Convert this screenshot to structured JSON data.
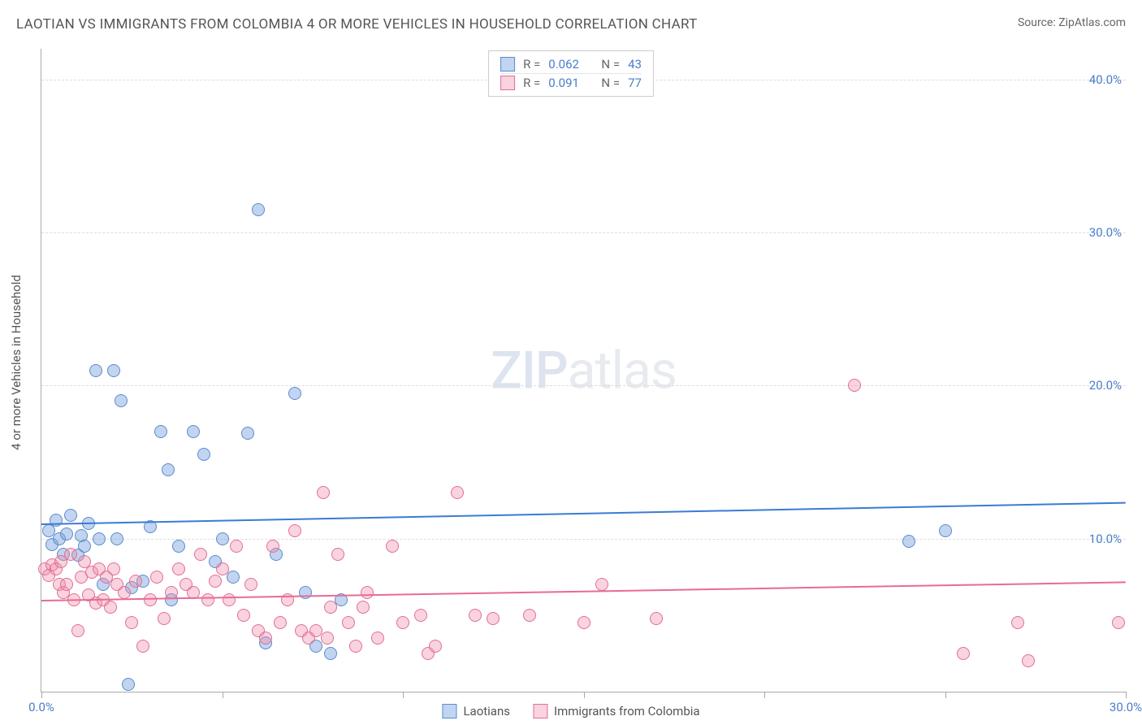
{
  "title": "LAOTIAN VS IMMIGRANTS FROM COLOMBIA 4 OR MORE VEHICLES IN HOUSEHOLD CORRELATION CHART",
  "source": "Source: ZipAtlas.com",
  "y_axis_label": "4 or more Vehicles in Household",
  "watermark_zip": "ZIP",
  "watermark_atlas": "atlas",
  "xlim": [
    0,
    30
  ],
  "ylim": [
    0,
    42
  ],
  "ytick_values": [
    10,
    20,
    30,
    40
  ],
  "ytick_labels": [
    "10.0%",
    "20.0%",
    "30.0%",
    "40.0%"
  ],
  "xtick_values": [
    0,
    5,
    10,
    15,
    20,
    25,
    30
  ],
  "xtick_labels_shown": {
    "0": "0.0%",
    "30": "30.0%"
  },
  "colors": {
    "blue_fill": "rgba(120,160,220,0.45)",
    "blue_stroke": "#5a8cd0",
    "pink_fill": "rgba(240,140,170,0.38)",
    "pink_stroke": "#e07090",
    "blue_line": "#3a7bd5",
    "pink_line": "#e86b94",
    "grid": "#dddddd",
    "axis": "#aaaaaa",
    "bg": "#ffffff",
    "y_text": "#4a7ec9"
  },
  "marker_radius": 8,
  "series": [
    {
      "name": "Laotians",
      "color_key": "blue",
      "R": "0.062",
      "N": "43",
      "trend": {
        "x0": 0,
        "y0": 11.0,
        "x1": 30,
        "y1": 12.4
      },
      "points": [
        [
          0.2,
          10.5
        ],
        [
          0.3,
          9.6
        ],
        [
          0.4,
          11.2
        ],
        [
          0.5,
          10.0
        ],
        [
          0.6,
          9.0
        ],
        [
          0.7,
          10.3
        ],
        [
          0.8,
          11.5
        ],
        [
          1.0,
          8.9
        ],
        [
          1.1,
          10.2
        ],
        [
          1.2,
          9.5
        ],
        [
          1.3,
          11.0
        ],
        [
          1.5,
          21.0
        ],
        [
          1.6,
          10.0
        ],
        [
          1.7,
          7.0
        ],
        [
          2.0,
          21.0
        ],
        [
          2.1,
          10.0
        ],
        [
          2.2,
          19.0
        ],
        [
          2.4,
          0.5
        ],
        [
          2.5,
          6.8
        ],
        [
          2.8,
          7.2
        ],
        [
          3.0,
          10.8
        ],
        [
          3.3,
          17.0
        ],
        [
          3.5,
          14.5
        ],
        [
          3.6,
          6.0
        ],
        [
          3.8,
          9.5
        ],
        [
          4.2,
          17.0
        ],
        [
          4.5,
          15.5
        ],
        [
          4.8,
          8.5
        ],
        [
          5.0,
          10.0
        ],
        [
          5.3,
          7.5
        ],
        [
          5.7,
          16.9
        ],
        [
          6.0,
          31.5
        ],
        [
          6.2,
          3.2
        ],
        [
          6.5,
          9.0
        ],
        [
          7.0,
          19.5
        ],
        [
          7.3,
          6.5
        ],
        [
          7.6,
          3.0
        ],
        [
          8.0,
          2.5
        ],
        [
          8.3,
          6.0
        ],
        [
          24.0,
          9.8
        ],
        [
          25.0,
          10.5
        ]
      ]
    },
    {
      "name": "Immigrants from Colombia",
      "color_key": "pink",
      "R": "0.091",
      "N": "77",
      "trend": {
        "x0": 0,
        "y0": 6.0,
        "x1": 30,
        "y1": 7.2
      },
      "points": [
        [
          0.1,
          8.0
        ],
        [
          0.2,
          7.6
        ],
        [
          0.3,
          8.3
        ],
        [
          0.4,
          8.0
        ],
        [
          0.5,
          7.0
        ],
        [
          0.55,
          8.5
        ],
        [
          0.6,
          6.5
        ],
        [
          0.7,
          7.0
        ],
        [
          0.8,
          9.0
        ],
        [
          0.9,
          6.0
        ],
        [
          1.0,
          4.0
        ],
        [
          1.1,
          7.5
        ],
        [
          1.2,
          8.5
        ],
        [
          1.3,
          6.3
        ],
        [
          1.4,
          7.8
        ],
        [
          1.5,
          5.8
        ],
        [
          1.6,
          8.0
        ],
        [
          1.7,
          6.0
        ],
        [
          1.8,
          7.5
        ],
        [
          1.9,
          5.5
        ],
        [
          2.0,
          8.0
        ],
        [
          2.1,
          7.0
        ],
        [
          2.3,
          6.5
        ],
        [
          2.5,
          4.5
        ],
        [
          2.6,
          7.2
        ],
        [
          2.8,
          3.0
        ],
        [
          3.0,
          6.0
        ],
        [
          3.2,
          7.5
        ],
        [
          3.4,
          4.8
        ],
        [
          3.6,
          6.5
        ],
        [
          3.8,
          8.0
        ],
        [
          4.0,
          7.0
        ],
        [
          4.2,
          6.5
        ],
        [
          4.4,
          9.0
        ],
        [
          4.6,
          6.0
        ],
        [
          4.8,
          7.2
        ],
        [
          5.0,
          8.0
        ],
        [
          5.2,
          6.0
        ],
        [
          5.4,
          9.5
        ],
        [
          5.6,
          5.0
        ],
        [
          5.8,
          7.0
        ],
        [
          6.0,
          4.0
        ],
        [
          6.2,
          3.5
        ],
        [
          6.4,
          9.5
        ],
        [
          6.6,
          4.5
        ],
        [
          6.8,
          6.0
        ],
        [
          7.0,
          10.5
        ],
        [
          7.2,
          4.0
        ],
        [
          7.4,
          3.5
        ],
        [
          7.6,
          4.0
        ],
        [
          7.8,
          13.0
        ],
        [
          7.9,
          3.5
        ],
        [
          8.0,
          5.5
        ],
        [
          8.2,
          9.0
        ],
        [
          8.5,
          4.5
        ],
        [
          8.7,
          3.0
        ],
        [
          8.9,
          5.5
        ],
        [
          9.0,
          6.5
        ],
        [
          9.3,
          3.5
        ],
        [
          9.7,
          9.5
        ],
        [
          10.0,
          4.5
        ],
        [
          10.5,
          5.0
        ],
        [
          10.7,
          2.5
        ],
        [
          10.9,
          3.0
        ],
        [
          11.5,
          13.0
        ],
        [
          12.0,
          5.0
        ],
        [
          12.5,
          4.8
        ],
        [
          13.5,
          5.0
        ],
        [
          15.0,
          4.5
        ],
        [
          15.5,
          7.0
        ],
        [
          17.0,
          4.8
        ],
        [
          22.5,
          20.0
        ],
        [
          25.5,
          2.5
        ],
        [
          27.0,
          4.5
        ],
        [
          27.3,
          2.0
        ],
        [
          29.8,
          4.5
        ]
      ]
    }
  ],
  "stats_legend_labels": {
    "R": "R =",
    "N": "N ="
  },
  "bottom_legend": [
    "Laotians",
    "Immigrants from Colombia"
  ]
}
